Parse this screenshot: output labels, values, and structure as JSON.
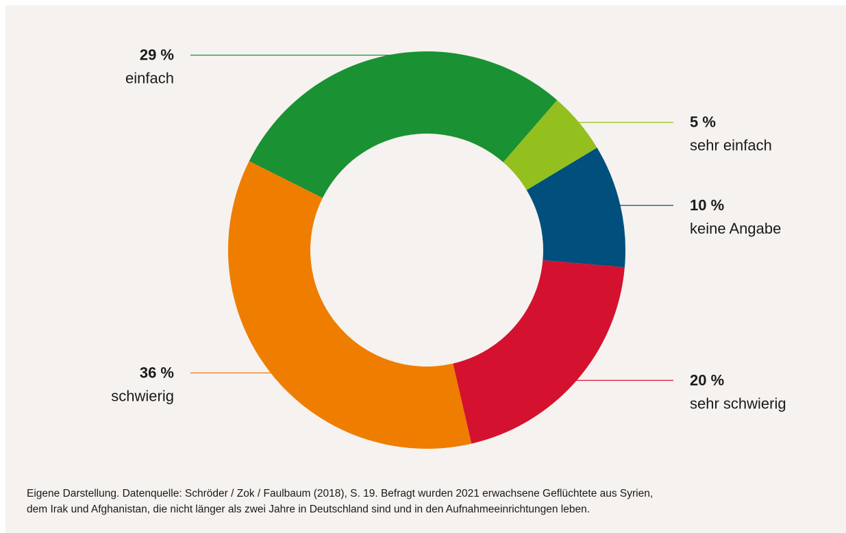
{
  "chart_data": {
    "type": "pie",
    "title": "",
    "slices": [
      {
        "label": "sehr einfach",
        "value": 5,
        "value_label": "5 %",
        "color": "#93c01f",
        "label_side": "right"
      },
      {
        "label": "keine Angabe",
        "value": 10,
        "value_label": "10 %",
        "color": "#004f7c",
        "label_side": "right"
      },
      {
        "label": "sehr schwierig",
        "value": 20,
        "value_label": "20 %",
        "color": "#d51130",
        "label_side": "right"
      },
      {
        "label": "schwierig",
        "value": 36,
        "value_label": "36 %",
        "color": "#ef7d00",
        "label_side": "left"
      },
      {
        "label": "einfach",
        "value": 29,
        "value_label": "29 %",
        "color": "#1a9133",
        "label_side": "left"
      }
    ],
    "donut": true
  },
  "caption": {
    "line1": "Eigene Darstellung. Datenquelle: Schröder / Zok / Faulbaum (2018), S. 19. Befragt wurden 2021 erwachsene Geflüchtete aus Syrien,",
    "line2": "dem Irak und Afghanistan, die nicht länger als zwei Jahre in Deutschland sind und in den Aufnahmeeinrichtungen leben."
  }
}
